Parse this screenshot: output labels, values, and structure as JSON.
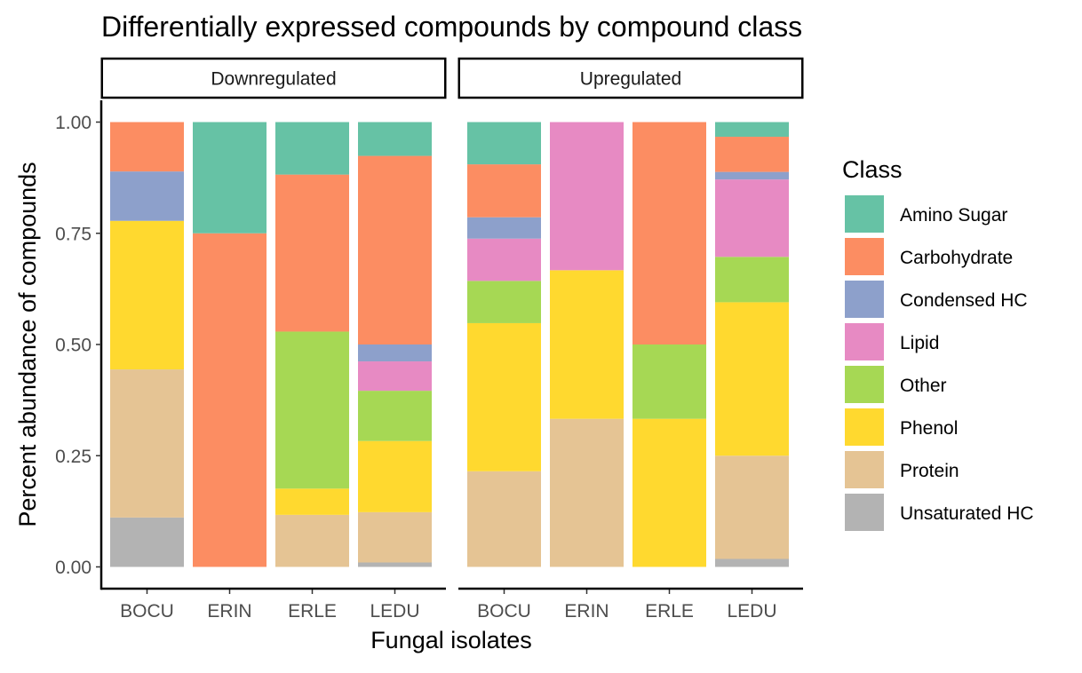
{
  "chart_data": {
    "type": "bar",
    "stacked": true,
    "normalized": true,
    "title": "Differentially expressed compounds by compound class",
    "xlabel": "Fungal isolates",
    "ylabel": "Percent abundance of compounds",
    "ylim": [
      0,
      1
    ],
    "yticks": [
      "0.00",
      "0.25",
      "0.50",
      "0.75",
      "1.00"
    ],
    "grid": false,
    "legend": {
      "title": "Class",
      "placement": "right"
    },
    "categories": [
      "BOCU",
      "ERIN",
      "ERLE",
      "LEDU"
    ],
    "stack_order_bottom_to_top": [
      "Unsaturated HC",
      "Protein",
      "Phenol",
      "Other",
      "Lipid",
      "Condensed HC",
      "Carbohydrate",
      "Amino Sugar"
    ],
    "classes": [
      {
        "name": "Amino Sugar",
        "color": "#66C2A5"
      },
      {
        "name": "Carbohydrate",
        "color": "#FC8D62"
      },
      {
        "name": "Condensed HC",
        "color": "#8DA0CB"
      },
      {
        "name": "Lipid",
        "color": "#E78AC3"
      },
      {
        "name": "Other",
        "color": "#A6D854"
      },
      {
        "name": "Phenol",
        "color": "#FFD92F"
      },
      {
        "name": "Protein",
        "color": "#E5C494"
      },
      {
        "name": "Unsaturated HC",
        "color": "#B3B3B3"
      }
    ],
    "facets": [
      {
        "label": "Downregulated",
        "series": [
          {
            "name": "Amino Sugar",
            "values": [
              0.0,
              0.25,
              0.118,
              0.076
            ]
          },
          {
            "name": "Carbohydrate",
            "values": [
              0.111,
              0.75,
              0.353,
              0.424
            ]
          },
          {
            "name": "Condensed HC",
            "values": [
              0.111,
              0.0,
              0.0,
              0.038
            ]
          },
          {
            "name": "Lipid",
            "values": [
              0.0,
              0.0,
              0.0,
              0.066
            ]
          },
          {
            "name": "Other",
            "values": [
              0.0,
              0.0,
              0.353,
              0.113
            ]
          },
          {
            "name": "Phenol",
            "values": [
              0.334,
              0.0,
              0.059,
              0.16
            ]
          },
          {
            "name": "Protein",
            "values": [
              0.333,
              0.0,
              0.117,
              0.113
            ]
          },
          {
            "name": "Unsaturated HC",
            "values": [
              0.111,
              0.0,
              0.0,
              0.01
            ]
          }
        ]
      },
      {
        "label": "Upregulated",
        "series": [
          {
            "name": "Amino Sugar",
            "values": [
              0.095,
              0.0,
              0.0,
              0.033
            ]
          },
          {
            "name": "Carbohydrate",
            "values": [
              0.119,
              0.0,
              0.5,
              0.079
            ]
          },
          {
            "name": "Condensed HC",
            "values": [
              0.048,
              0.0,
              0.0,
              0.017
            ]
          },
          {
            "name": "Lipid",
            "values": [
              0.095,
              0.333,
              0.0,
              0.174
            ]
          },
          {
            "name": "Other",
            "values": [
              0.095,
              0.0,
              0.167,
              0.102
            ]
          },
          {
            "name": "Phenol",
            "values": [
              0.333,
              0.334,
              0.333,
              0.345
            ]
          },
          {
            "name": "Protein",
            "values": [
              0.215,
              0.333,
              0.0,
              0.232
            ]
          },
          {
            "name": "Unsaturated HC",
            "values": [
              0.0,
              0.0,
              0.0,
              0.018
            ]
          }
        ]
      }
    ]
  }
}
